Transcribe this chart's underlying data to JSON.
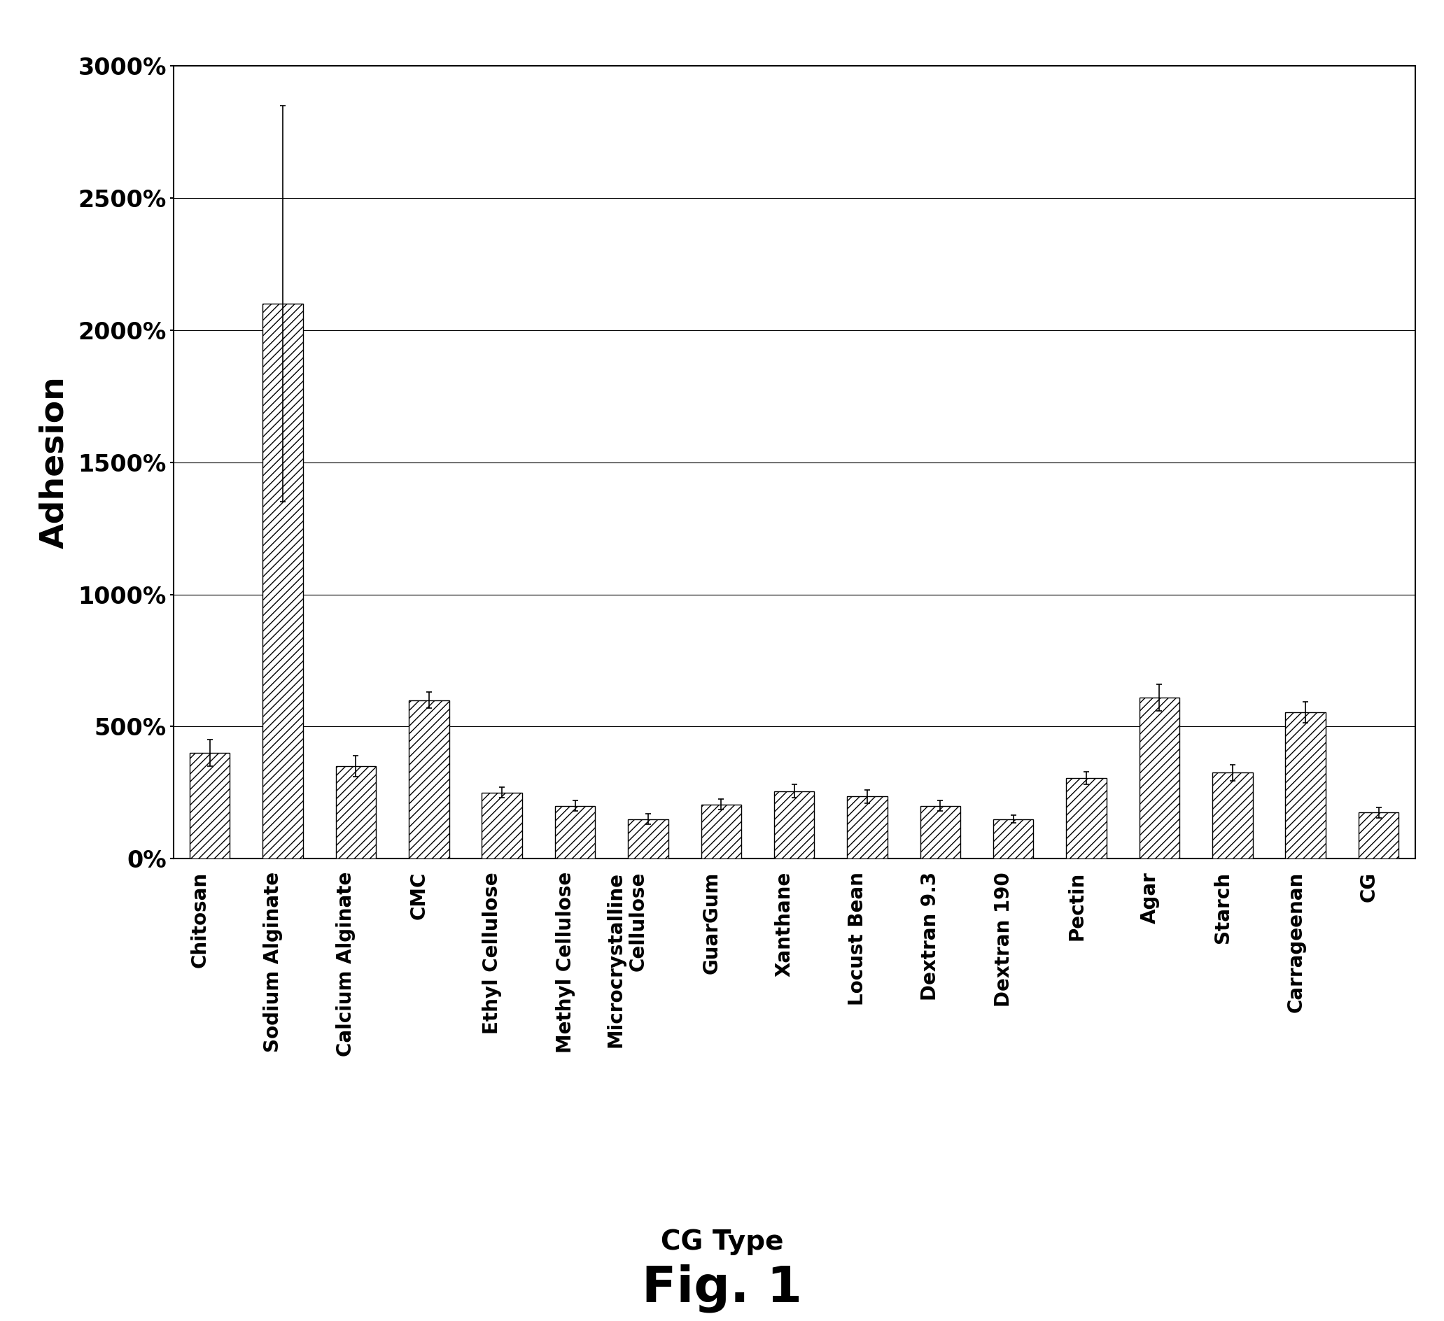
{
  "categories": [
    "Chitosan",
    "Sodium Alginate",
    "Calcium Alginate",
    "CMC",
    "Ethyl Cellulose",
    "Methyl Cellulose",
    "Microcrystalline\nCellulose",
    "GuarGum",
    "Xanthane",
    "Locust Bean",
    "Dextran 9.3",
    "Dextran 190",
    "Pectin",
    "Agar",
    "Starch",
    "Carrageenan",
    "CG"
  ],
  "values": [
    400,
    2100,
    350,
    600,
    250,
    200,
    150,
    205,
    255,
    235,
    200,
    150,
    305,
    610,
    325,
    555,
    175
  ],
  "errors": [
    50,
    750,
    40,
    30,
    20,
    20,
    20,
    20,
    25,
    25,
    20,
    15,
    25,
    50,
    30,
    40,
    20
  ],
  "ylabel": "Adhesion",
  "xlabel": "CG Type",
  "ylim": [
    0,
    3000
  ],
  "yticks": [
    0,
    500,
    1000,
    1500,
    2000,
    2500,
    3000
  ],
  "bar_hatch": "///",
  "background_color": "#ffffff",
  "fig_caption": "Fig. 1"
}
